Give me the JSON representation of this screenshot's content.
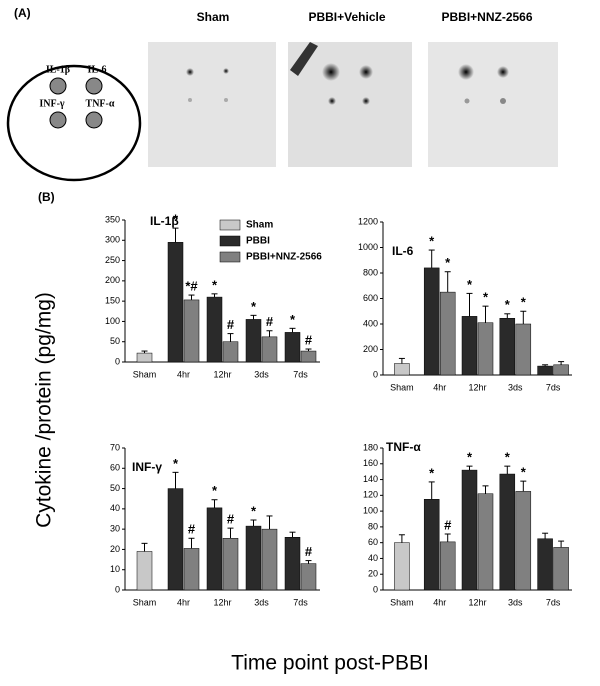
{
  "panel_a": {
    "label": "(A)",
    "columns": [
      "Sham",
      "PBBI+Vehicle",
      "PBBI+NNZ-2566"
    ],
    "diagram": [
      "IL-1β",
      "IL-6",
      "INF-γ",
      "TNF-α"
    ]
  },
  "panel_b": {
    "label": "(B)",
    "y_label": "Cytokine /protein  (pg/mg)",
    "x_label": "Time point post-PBBI"
  },
  "chart_data": [
    {
      "type": "bar",
      "title": "IL-1β",
      "categories": [
        "Sham",
        "4hr",
        "12hr",
        "3ds",
        "7ds"
      ],
      "legend": "top",
      "ylim": [
        0,
        350
      ],
      "yticks": [
        0,
        50,
        100,
        150,
        200,
        250,
        300,
        350
      ],
      "series": [
        {
          "name": "Sham",
          "color": "#c8c8c8",
          "values": [
            22,
            null,
            null,
            null,
            null
          ],
          "errors": [
            5,
            null,
            null,
            null,
            null
          ],
          "annotations": [
            null,
            null,
            null,
            null,
            null
          ]
        },
        {
          "name": "PBBI",
          "color": "#2a2a2a",
          "values": [
            null,
            295,
            160,
            105,
            73
          ],
          "errors": [
            null,
            35,
            8,
            10,
            10
          ],
          "annotations": [
            null,
            "*",
            "*",
            "*",
            "*"
          ]
        },
        {
          "name": "PBBI+NNZ-2566",
          "color": "#808080",
          "values": [
            null,
            153,
            50,
            62,
            27
          ],
          "errors": [
            null,
            12,
            20,
            15,
            5
          ],
          "annotations": [
            null,
            "*#",
            "#",
            "#",
            "#"
          ]
        }
      ]
    },
    {
      "type": "bar",
      "title": "IL-6",
      "categories": [
        "Sham",
        "4hr",
        "12hr",
        "3ds",
        "7ds"
      ],
      "ylim": [
        0,
        1200
      ],
      "yticks": [
        0,
        200,
        400,
        600,
        800,
        1000,
        1200
      ],
      "series": [
        {
          "color": "#c8c8c8",
          "values": [
            90,
            null,
            null,
            null,
            null
          ],
          "errors": [
            40,
            null,
            null,
            null,
            null
          ],
          "annotations": [
            null,
            null,
            null,
            null,
            null
          ]
        },
        {
          "color": "#2a2a2a",
          "values": [
            null,
            840,
            460,
            445,
            70
          ],
          "errors": [
            null,
            140,
            180,
            35,
            10
          ],
          "annotations": [
            null,
            "*",
            "*",
            "*",
            null
          ]
        },
        {
          "color": "#808080",
          "values": [
            null,
            650,
            410,
            400,
            80
          ],
          "errors": [
            null,
            160,
            130,
            100,
            25
          ],
          "annotations": [
            null,
            "*",
            "*",
            "*",
            null
          ]
        }
      ]
    },
    {
      "type": "bar",
      "title": "INF-γ",
      "categories": [
        "Sham",
        "4hr",
        "12hr",
        "3ds",
        "7ds"
      ],
      "ylim": [
        0,
        70
      ],
      "yticks": [
        0,
        10,
        20,
        30,
        40,
        50,
        60,
        70
      ],
      "series": [
        {
          "color": "#c8c8c8",
          "values": [
            19,
            null,
            null,
            null,
            null
          ],
          "errors": [
            4,
            null,
            null,
            null,
            null
          ],
          "annotations": [
            null,
            null,
            null,
            null,
            null
          ]
        },
        {
          "color": "#2a2a2a",
          "values": [
            null,
            50,
            40.5,
            31.5,
            26
          ],
          "errors": [
            null,
            8,
            4,
            3,
            2.5
          ],
          "annotations": [
            null,
            "*",
            "*",
            "*",
            null
          ]
        },
        {
          "color": "#808080",
          "values": [
            null,
            20.5,
            25.5,
            30,
            13
          ],
          "errors": [
            null,
            5,
            5,
            6.5,
            1.5
          ],
          "annotations": [
            null,
            "#",
            "#",
            null,
            "#"
          ]
        }
      ]
    },
    {
      "type": "bar",
      "title": "TNF-α",
      "categories": [
        "Sham",
        "4hr",
        "12hr",
        "3ds",
        "7ds"
      ],
      "ylim": [
        0,
        180
      ],
      "yticks": [
        0,
        20,
        40,
        60,
        80,
        100,
        120,
        140,
        160,
        180
      ],
      "series": [
        {
          "color": "#c8c8c8",
          "values": [
            60,
            null,
            null,
            null,
            null
          ],
          "errors": [
            10,
            null,
            null,
            null,
            null
          ],
          "annotations": [
            null,
            null,
            null,
            null,
            null
          ]
        },
        {
          "color": "#2a2a2a",
          "values": [
            null,
            115,
            152,
            147,
            65
          ],
          "errors": [
            null,
            22,
            5,
            10,
            7
          ],
          "annotations": [
            null,
            "*",
            "*",
            "*",
            null
          ]
        },
        {
          "color": "#808080",
          "values": [
            null,
            61,
            122,
            125,
            54
          ],
          "errors": [
            null,
            10,
            10,
            13,
            8
          ],
          "annotations": [
            null,
            "#",
            null,
            "*",
            null
          ]
        }
      ]
    }
  ]
}
